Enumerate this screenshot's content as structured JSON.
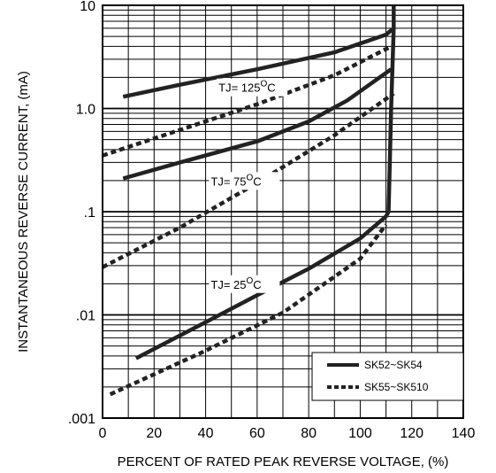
{
  "chart_data": {
    "type": "line",
    "title": "",
    "xlabel": "PERCENT OF RATED PEAK REVERSE VOLTAGE, (%)",
    "ylabel": "INSTANTANEOUS REVERSE CURRENT, (mA)",
    "xlim": [
      0,
      140
    ],
    "ylim": [
      0.001,
      10
    ],
    "yscale": "log",
    "grid": true,
    "x_ticks": [
      "0",
      "20",
      "40",
      "60",
      "80",
      "100",
      "120",
      "140"
    ],
    "x_tick_values": [
      0,
      20,
      40,
      60,
      80,
      100,
      120,
      140
    ],
    "y_ticks": [
      ".001",
      ".01",
      ".1",
      "1.0",
      "10"
    ],
    "y_tick_values": [
      0.001,
      0.01,
      0.1,
      1,
      10
    ],
    "legend_position": "bottom-right",
    "legend": [
      {
        "label": "SK52~SK54",
        "style": "solid"
      },
      {
        "label": "SK55~SK510",
        "style": "dotted"
      }
    ],
    "annotations": [
      {
        "base": "TJ= 125",
        "sup": "O",
        "tail": "C",
        "x": 45,
        "y": 1.45
      },
      {
        "base": "TJ= 75",
        "sup": "O",
        "tail": "C",
        "x": 42,
        "y": 0.18
      },
      {
        "base": "TJ= 25",
        "sup": "O",
        "tail": "C",
        "x": 42,
        "y": 0.018
      }
    ],
    "series": [
      {
        "group": "SK52~SK54",
        "temperature": "125",
        "style": "solid",
        "x": [
          8,
          30,
          60,
          90,
          110,
          113,
          113
        ],
        "y": [
          1.3,
          1.7,
          2.4,
          3.5,
          5.2,
          6.0,
          10
        ]
      },
      {
        "group": "SK55~SK510",
        "temperature": "125",
        "style": "dotted",
        "x": [
          0,
          30,
          60,
          90,
          112
        ],
        "y": [
          0.35,
          0.62,
          1.1,
          2.1,
          4.0
        ]
      },
      {
        "group": "SK52~SK54",
        "temperature": "75",
        "style": "solid",
        "x": [
          8,
          30,
          60,
          80,
          95,
          112
        ],
        "y": [
          0.21,
          0.3,
          0.48,
          0.75,
          1.2,
          2.4
        ]
      },
      {
        "group": "SK55~SK510",
        "temperature": "75",
        "style": "dotted",
        "x": [
          0,
          30,
          60,
          90,
          113
        ],
        "y": [
          0.029,
          0.07,
          0.19,
          0.55,
          1.4
        ]
      },
      {
        "group": "SK52~SK54",
        "temperature": "25",
        "style": "solid",
        "x": [
          13,
          40,
          60,
          80,
          100,
          110,
          111,
          112,
          113
        ],
        "y": [
          0.0038,
          0.0085,
          0.0155,
          0.028,
          0.055,
          0.09,
          0.1,
          1.0,
          6.0
        ]
      },
      {
        "group": "SK55~SK510",
        "temperature": "25",
        "style": "dotted",
        "x": [
          3,
          40,
          70,
          100,
          110
        ],
        "y": [
          0.0017,
          0.0045,
          0.0105,
          0.035,
          0.075
        ]
      }
    ]
  }
}
